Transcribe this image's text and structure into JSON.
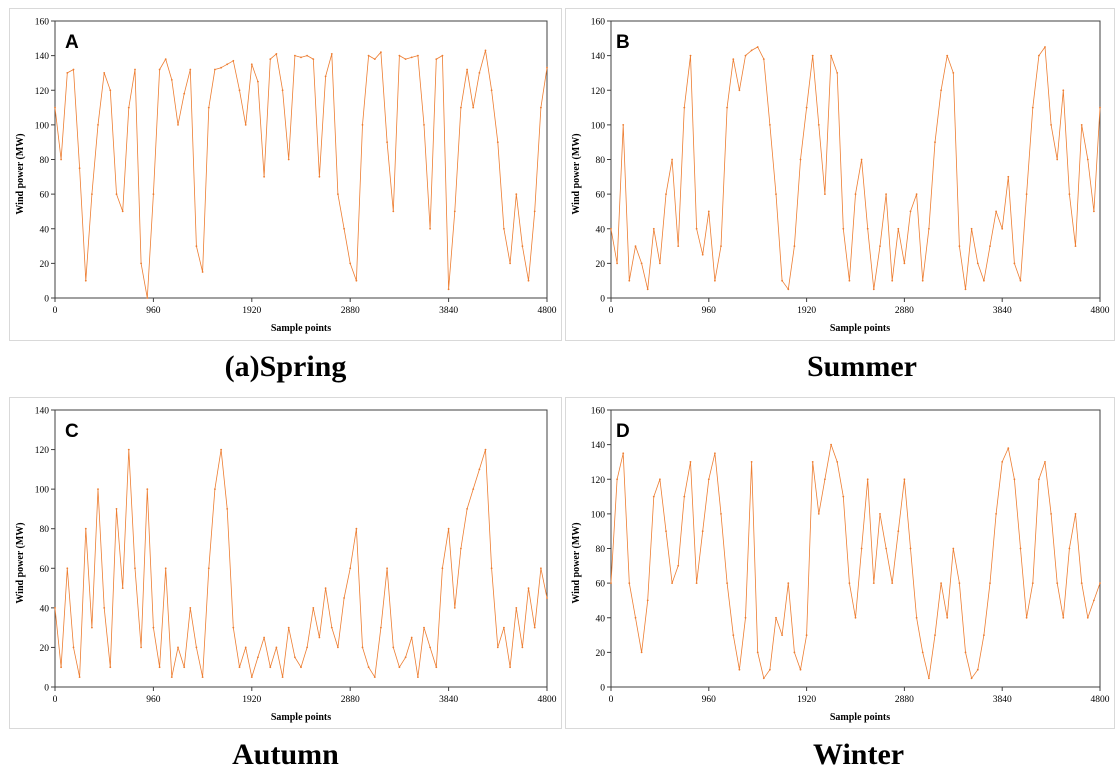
{
  "figure": {
    "panel_captions": [
      "(a)Spring",
      "Summer",
      "Autumn",
      "Winter"
    ],
    "line_color": "#ED7D31"
  },
  "chart_data": [
    {
      "type": "line",
      "panel_letter": "A",
      "caption": "(a)Spring",
      "xlabel": "Sample points",
      "ylabel": "Wind power (MW)",
      "xlim": [
        0,
        4800
      ],
      "ylim": [
        0,
        160
      ],
      "xticks": [
        0,
        960,
        1920,
        2880,
        3840,
        4800
      ],
      "yticks": [
        0,
        20,
        40,
        60,
        80,
        100,
        120,
        140,
        160
      ],
      "grid": false,
      "legend": "none",
      "series": [
        {
          "x": [
            0,
            60,
            120,
            180,
            240,
            300,
            360,
            420,
            480,
            540,
            600,
            660,
            720,
            780,
            840,
            900,
            960,
            1020,
            1080,
            1140,
            1200,
            1260,
            1320,
            1380,
            1440,
            1500,
            1560,
            1620,
            1680,
            1740,
            1800,
            1860,
            1920,
            1980,
            2040,
            2100,
            2160,
            2220,
            2280,
            2340,
            2400,
            2460,
            2520,
            2580,
            2640,
            2700,
            2760,
            2820,
            2880,
            2940,
            3000,
            3060,
            3120,
            3180,
            3240,
            3300,
            3360,
            3420,
            3480,
            3540,
            3600,
            3660,
            3720,
            3780,
            3840,
            3900,
            3960,
            4020,
            4080,
            4140,
            4200,
            4260,
            4320,
            4380,
            4440,
            4500,
            4560,
            4620,
            4680,
            4740,
            4800
          ],
          "values": [
            110,
            80,
            130,
            132,
            75,
            10,
            60,
            100,
            130,
            120,
            60,
            50,
            110,
            132,
            20,
            0,
            60,
            132,
            138,
            126,
            100,
            118,
            132,
            30,
            15,
            110,
            132,
            133,
            135,
            137,
            120,
            100,
            135,
            125,
            70,
            138,
            141,
            120,
            80,
            140,
            139,
            140,
            138,
            70,
            128,
            141,
            60,
            40,
            20,
            10,
            100,
            140,
            138,
            142,
            90,
            50,
            140,
            138,
            139,
            140,
            100,
            40,
            138,
            140,
            5,
            50,
            110,
            132,
            110,
            130,
            143,
            120,
            90,
            40,
            20,
            60,
            30,
            10,
            50,
            110,
            133
          ]
        }
      ]
    },
    {
      "type": "line",
      "panel_letter": "B",
      "caption": "Summer",
      "xlabel": "Sample points",
      "ylabel": "Wind power (MW)",
      "xlim": [
        0,
        4800
      ],
      "ylim": [
        0,
        160
      ],
      "xticks": [
        0,
        960,
        1920,
        2880,
        3840,
        4800
      ],
      "yticks": [
        0,
        20,
        40,
        60,
        80,
        100,
        120,
        140,
        160
      ],
      "grid": false,
      "legend": "none",
      "series": [
        {
          "x": [
            0,
            60,
            120,
            180,
            240,
            300,
            360,
            420,
            480,
            540,
            600,
            660,
            720,
            780,
            840,
            900,
            960,
            1020,
            1080,
            1140,
            1200,
            1260,
            1320,
            1380,
            1440,
            1500,
            1560,
            1620,
            1680,
            1740,
            1800,
            1860,
            1920,
            1980,
            2040,
            2100,
            2160,
            2220,
            2280,
            2340,
            2400,
            2460,
            2520,
            2580,
            2640,
            2700,
            2760,
            2820,
            2880,
            2940,
            3000,
            3060,
            3120,
            3180,
            3240,
            3300,
            3360,
            3420,
            3480,
            3540,
            3600,
            3660,
            3720,
            3780,
            3840,
            3900,
            3960,
            4020,
            4080,
            4140,
            4200,
            4260,
            4320,
            4380,
            4440,
            4500,
            4560,
            4620,
            4680,
            4740,
            4800
          ],
          "values": [
            40,
            20,
            100,
            10,
            30,
            20,
            5,
            40,
            20,
            60,
            80,
            30,
            110,
            140,
            40,
            25,
            50,
            10,
            30,
            110,
            138,
            120,
            140,
            143,
            145,
            138,
            100,
            60,
            10,
            5,
            30,
            80,
            110,
            140,
            100,
            60,
            140,
            130,
            40,
            10,
            60,
            80,
            40,
            5,
            30,
            60,
            10,
            40,
            20,
            50,
            60,
            10,
            40,
            90,
            120,
            140,
            130,
            30,
            5,
            40,
            20,
            10,
            30,
            50,
            40,
            70,
            20,
            10,
            60,
            110,
            140,
            145,
            100,
            80,
            120,
            60,
            30,
            100,
            80,
            50,
            110
          ]
        }
      ]
    },
    {
      "type": "line",
      "panel_letter": "C",
      "caption": "Autumn",
      "xlabel": "Sample points",
      "ylabel": "Wind power (MW)",
      "xlim": [
        0,
        4800
      ],
      "ylim": [
        0,
        140
      ],
      "xticks": [
        0,
        960,
        1920,
        2880,
        3840,
        4800
      ],
      "yticks": [
        0,
        20,
        40,
        60,
        80,
        100,
        120,
        140
      ],
      "grid": false,
      "legend": "none",
      "series": [
        {
          "x": [
            0,
            60,
            120,
            180,
            240,
            300,
            360,
            420,
            480,
            540,
            600,
            660,
            720,
            780,
            840,
            900,
            960,
            1020,
            1080,
            1140,
            1200,
            1260,
            1320,
            1380,
            1440,
            1500,
            1560,
            1620,
            1680,
            1740,
            1800,
            1860,
            1920,
            1980,
            2040,
            2100,
            2160,
            2220,
            2280,
            2340,
            2400,
            2460,
            2520,
            2580,
            2640,
            2700,
            2760,
            2820,
            2880,
            2940,
            3000,
            3060,
            3120,
            3180,
            3240,
            3300,
            3360,
            3420,
            3480,
            3540,
            3600,
            3660,
            3720,
            3780,
            3840,
            3900,
            3960,
            4020,
            4080,
            4140,
            4200,
            4260,
            4320,
            4380,
            4440,
            4500,
            4560,
            4620,
            4680,
            4740,
            4800
          ],
          "values": [
            40,
            10,
            60,
            20,
            5,
            80,
            30,
            100,
            40,
            10,
            90,
            50,
            120,
            60,
            20,
            100,
            30,
            10,
            60,
            5,
            20,
            10,
            40,
            20,
            5,
            60,
            100,
            120,
            90,
            30,
            10,
            20,
            5,
            15,
            25,
            10,
            20,
            5,
            30,
            15,
            10,
            20,
            40,
            25,
            50,
            30,
            20,
            45,
            60,
            80,
            20,
            10,
            5,
            30,
            60,
            20,
            10,
            15,
            25,
            5,
            30,
            20,
            10,
            60,
            80,
            40,
            70,
            90,
            100,
            110,
            120,
            60,
            20,
            30,
            10,
            40,
            20,
            50,
            30,
            60,
            45
          ]
        }
      ]
    },
    {
      "type": "line",
      "panel_letter": "D",
      "caption": "Winter",
      "xlabel": "Sample points",
      "ylabel": "Wind power (MW)",
      "xlim": [
        0,
        4800
      ],
      "ylim": [
        0,
        160
      ],
      "xticks": [
        0,
        960,
        1920,
        2880,
        3840,
        4800
      ],
      "yticks": [
        0,
        20,
        40,
        60,
        80,
        100,
        120,
        140,
        160
      ],
      "grid": false,
      "legend": "none",
      "series": [
        {
          "x": [
            0,
            60,
            120,
            180,
            240,
            300,
            360,
            420,
            480,
            540,
            600,
            660,
            720,
            780,
            840,
            900,
            960,
            1020,
            1080,
            1140,
            1200,
            1260,
            1320,
            1380,
            1440,
            1500,
            1560,
            1620,
            1680,
            1740,
            1800,
            1860,
            1920,
            1980,
            2040,
            2100,
            2160,
            2220,
            2280,
            2340,
            2400,
            2460,
            2520,
            2580,
            2640,
            2700,
            2760,
            2820,
            2880,
            2940,
            3000,
            3060,
            3120,
            3180,
            3240,
            3300,
            3360,
            3420,
            3480,
            3540,
            3600,
            3660,
            3720,
            3780,
            3840,
            3900,
            3960,
            4020,
            4080,
            4140,
            4200,
            4260,
            4320,
            4380,
            4440,
            4500,
            4560,
            4620,
            4680,
            4740,
            4800
          ],
          "values": [
            60,
            120,
            135,
            60,
            40,
            20,
            50,
            110,
            120,
            90,
            60,
            70,
            110,
            130,
            60,
            90,
            120,
            135,
            100,
            60,
            30,
            10,
            40,
            130,
            20,
            5,
            10,
            40,
            30,
            60,
            20,
            10,
            30,
            130,
            100,
            120,
            140,
            130,
            110,
            60,
            40,
            80,
            120,
            60,
            100,
            80,
            60,
            90,
            120,
            80,
            40,
            20,
            5,
            30,
            60,
            40,
            80,
            60,
            20,
            5,
            10,
            30,
            60,
            100,
            130,
            138,
            120,
            80,
            40,
            60,
            120,
            130,
            100,
            60,
            40,
            80,
            100,
            60,
            40,
            50,
            60
          ]
        }
      ]
    }
  ]
}
